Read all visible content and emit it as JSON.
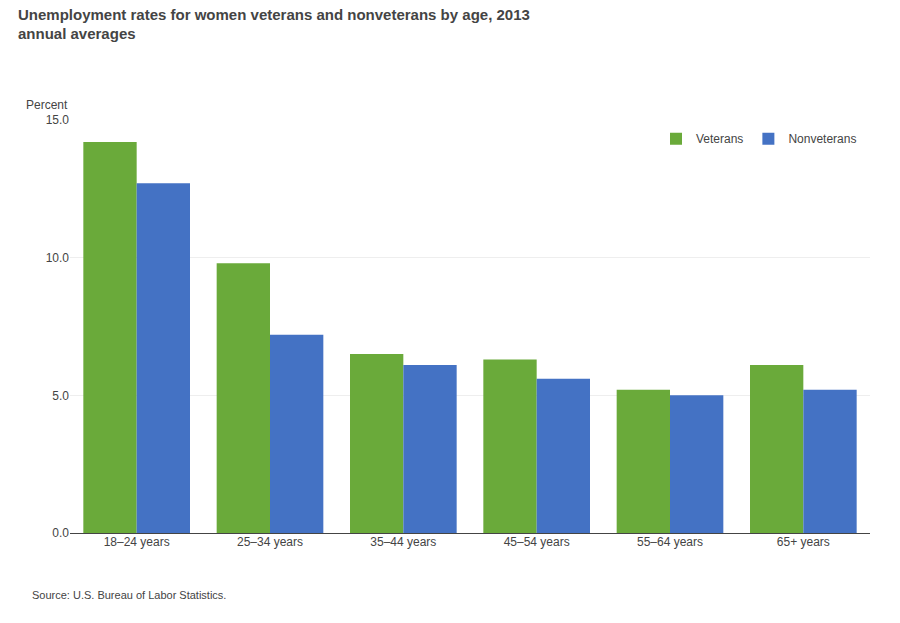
{
  "chart_data": {
    "type": "bar",
    "title": "Unemployment rates for women veterans and nonveterans by age, 2013",
    "subtitle": "annual averages",
    "ylabel": "Percent",
    "annotations": [
      "Source: U.S. Bureau of Labor Statistics."
    ],
    "categories": [
      "18–24 years",
      "25–34 years",
      "35–44 years",
      "45–54 years",
      "55–64 years",
      "65+ years"
    ],
    "series": [
      {
        "name": "Veterans",
        "color": "#6aaa3a",
        "values": [
          14.2,
          9.8,
          6.5,
          6.3,
          5.2,
          6.1
        ]
      },
      {
        "name": "Nonveterans",
        "color": "#4472c4",
        "values": [
          12.7,
          7.2,
          6.1,
          5.6,
          5.0,
          5.2
        ]
      }
    ],
    "ylim": [
      0,
      15.0
    ],
    "yticks": [
      {
        "value": 0.0,
        "label": "0.0"
      },
      {
        "value": 5.0,
        "label": "5.0"
      },
      {
        "value": 10.0,
        "label": "10.0"
      },
      {
        "value": 15.0,
        "label": "15.0"
      }
    ],
    "grid": true,
    "legend": "upper right"
  }
}
